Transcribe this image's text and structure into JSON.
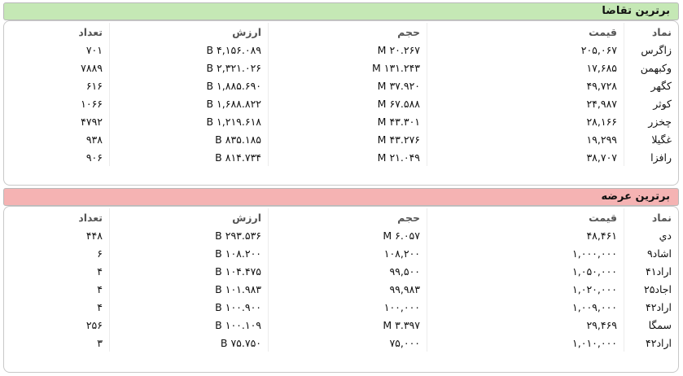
{
  "demand": {
    "title": "برترين تقاضا",
    "headers": {
      "symbol": "نماد",
      "price": "قيمت",
      "volume": "حجم",
      "value": "ارزش",
      "count": "تعداد"
    },
    "rows": [
      {
        "symbol": "زاگرس",
        "price": "۲۰۵,۰۶۷",
        "volume": "۲۰.۲۶۷ M",
        "value": "۴,۱۵۶.۰۸۹ B",
        "count": "۷۰۱"
      },
      {
        "symbol": "وكبهمن",
        "price": "۱۷,۶۸۵",
        "volume": "۱۳۱.۲۴۳ M",
        "value": "۲,۳۲۱.۰۲۶ B",
        "count": "۷۸۸۹"
      },
      {
        "symbol": "كگهر",
        "price": "۴۹,۷۲۸",
        "volume": "۳۷.۹۲۰ M",
        "value": "۱,۸۸۵.۶۹۰ B",
        "count": "۶۱۶"
      },
      {
        "symbol": "كوثر",
        "price": "۲۴,۹۸۷",
        "volume": "۶۷.۵۸۸ M",
        "value": "۱,۶۸۸.۸۲۲ B",
        "count": "۱۰۶۶"
      },
      {
        "symbol": "چخزر",
        "price": "۲۸,۱۶۶",
        "volume": "۴۳.۳۰۱ M",
        "value": "۱,۲۱۹.۶۱۸ B",
        "count": "۴۷۹۲"
      },
      {
        "symbol": "غگيلا",
        "price": "۱۹,۲۹۹",
        "volume": "۴۳.۲۷۶ M",
        "value": "۸۳۵.۱۸۵ B",
        "count": "۹۳۸"
      },
      {
        "symbol": "رافزا",
        "price": "۳۸,۷۰۷",
        "volume": "۲۱.۰۴۹ M",
        "value": "۸۱۴.۷۳۴ B",
        "count": "۹۰۶"
      }
    ]
  },
  "supply": {
    "title": "برترين عرضه",
    "headers": {
      "symbol": "نماد",
      "price": "قيمت",
      "volume": "حجم",
      "value": "ارزش",
      "count": "تعداد"
    },
    "rows": [
      {
        "symbol": "دي",
        "price": "۴۸,۴۶۱",
        "volume": "۶.۰۵۷ M",
        "value": "۲۹۳.۵۳۶ B",
        "count": "۴۴۸"
      },
      {
        "symbol": "اشاد۹",
        "price": "۱,۰۰۰,۰۰۰",
        "volume": "۱۰۸,۲۰۰",
        "value": "۱۰۸.۲۰۰ B",
        "count": "۶"
      },
      {
        "symbol": "اراد۴۱",
        "price": "۱,۰۵۰,۰۰۰",
        "volume": "۹۹,۵۰۰",
        "value": "۱۰۴.۴۷۵ B",
        "count": "۴"
      },
      {
        "symbol": "اجاد۲۵",
        "price": "۱,۰۲۰,۰۰۰",
        "volume": "۹۹,۹۸۳",
        "value": "۱۰۱.۹۸۳ B",
        "count": "۴"
      },
      {
        "symbol": "اراد۴۲",
        "price": "۱,۰۰۹,۰۰۰",
        "volume": "۱۰۰,۰۰۰",
        "value": "۱۰۰.۹۰۰ B",
        "count": "۴"
      },
      {
        "symbol": "سمگا",
        "price": "۲۹,۴۶۹",
        "volume": "۳.۳۹۷ M",
        "value": "۱۰۰.۱۰۹ B",
        "count": "۲۵۶"
      },
      {
        "symbol": "اراد۴۲",
        "price": "۱,۰۱۰,۰۰۰",
        "volume": "۷۵,۰۰۰",
        "value": "۷۵.۷۵۰ B",
        "count": "۳"
      }
    ]
  }
}
